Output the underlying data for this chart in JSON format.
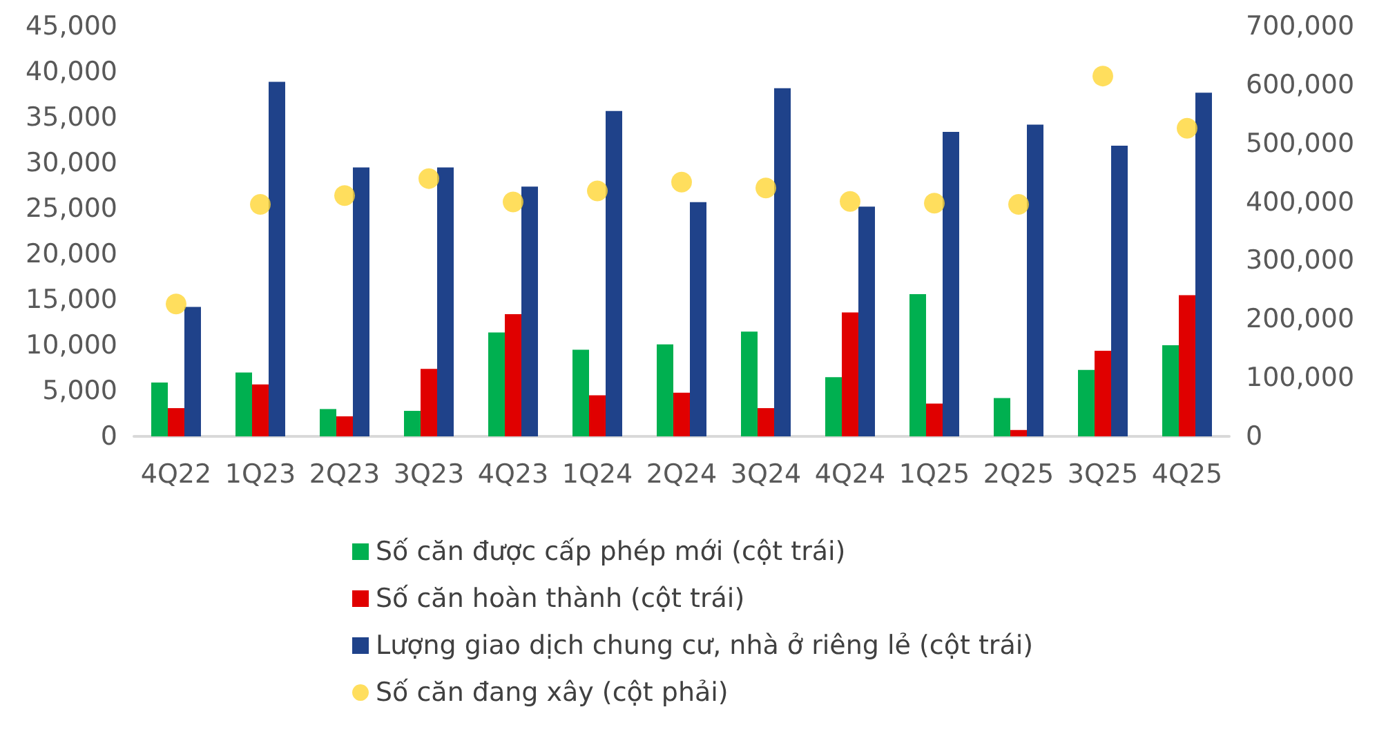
{
  "chart_data": {
    "type": "bar",
    "categories": [
      "4Q22",
      "1Q23",
      "2Q23",
      "3Q23",
      "4Q23",
      "1Q24",
      "2Q24",
      "3Q24",
      "4Q24",
      "1Q25",
      "2Q25",
      "3Q25",
      "4Q25"
    ],
    "series": [
      {
        "name": "Số căn được cấp phép mới (cột trái)",
        "color": "#00b050",
        "values": [
          5900,
          7000,
          3000,
          2800,
          11400,
          9500,
          10100,
          11500,
          6500,
          15600,
          4200,
          7300,
          10000
        ]
      },
      {
        "name": "Số căn hoàn thành (cột trái)",
        "color": "#e00000",
        "values": [
          3100,
          5700,
          2200,
          7400,
          13400,
          4500,
          4800,
          3100,
          13600,
          3600,
          700,
          9400,
          15500
        ]
      },
      {
        "name": "Lượng giao dịch chung cư, nhà ở riêng lẻ (cột trái)",
        "color": "#1f428a",
        "values": [
          14200,
          38900,
          29500,
          29500,
          27400,
          35700,
          25700,
          38200,
          25200,
          33400,
          34200,
          31900,
          37700
        ]
      },
      {
        "name": "Số căn đang xây (cột phải)",
        "color": "#ffd635",
        "type": "scatter",
        "axis": "y2",
        "marker": "circle",
        "values": [
          226000,
          396000,
          411000,
          440000,
          400000,
          419000,
          434000,
          424000,
          401000,
          398000,
          396000,
          615000,
          526000
        ]
      }
    ],
    "ylim": [
      0,
      45000
    ],
    "yticks": [
      {
        "value": 0,
        "label": "0"
      },
      {
        "value": 5000,
        "label": "5,000"
      },
      {
        "value": 10000,
        "label": "10,000"
      },
      {
        "value": 15000,
        "label": "15,000"
      },
      {
        "value": 20000,
        "label": "20,000"
      },
      {
        "value": 25000,
        "label": "25,000"
      },
      {
        "value": 30000,
        "label": "30,000"
      },
      {
        "value": 35000,
        "label": "35,000"
      },
      {
        "value": 40000,
        "label": "40,000"
      },
      {
        "value": 45000,
        "label": "45,000"
      }
    ],
    "y2lim": [
      0,
      700000
    ],
    "y2ticks": [
      {
        "value": 0,
        "label": "0"
      },
      {
        "value": 100000,
        "label": "100,000"
      },
      {
        "value": 200000,
        "label": "200,000"
      },
      {
        "value": 300000,
        "label": "300,000"
      },
      {
        "value": 400000,
        "label": "400,000"
      },
      {
        "value": 500000,
        "label": "500,000"
      },
      {
        "value": 600000,
        "label": "600,000"
      },
      {
        "value": 700000,
        "label": "700,000"
      }
    ],
    "grid": false,
    "legend": "bottom"
  }
}
